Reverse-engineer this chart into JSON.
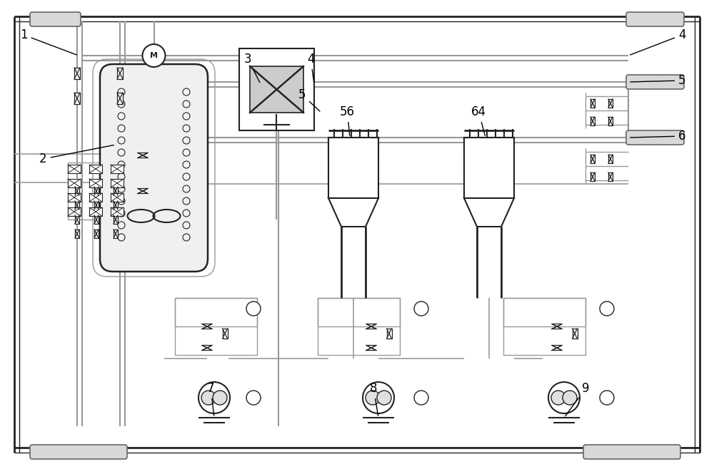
{
  "bg_color": "#ffffff",
  "lc": "#999999",
  "dc": "#222222",
  "mc": "#666666",
  "figsize": [
    10.0,
    6.58
  ],
  "dpi": 100
}
